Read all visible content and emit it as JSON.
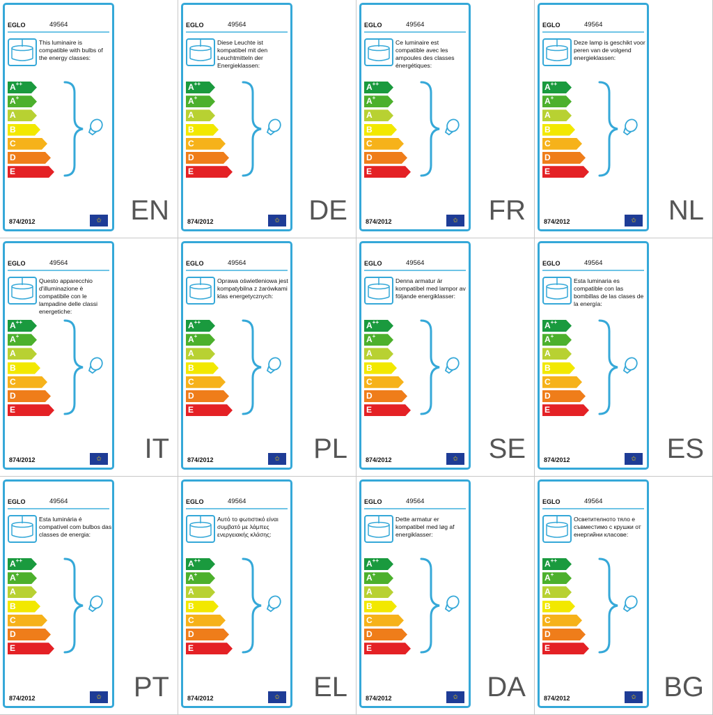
{
  "brand": "EGLO",
  "model": "49564",
  "regulation": "874/2012",
  "eu_flag_icon": "eu-flag-icon",
  "energy_classes": [
    {
      "base": "A",
      "sup": "++",
      "color": "#1a9a3e"
    },
    {
      "base": "A",
      "sup": "+",
      "color": "#4cb02c"
    },
    {
      "base": "A",
      "sup": "",
      "color": "#b8d132"
    },
    {
      "base": "B",
      "sup": "",
      "color": "#f2e800"
    },
    {
      "base": "C",
      "sup": "",
      "color": "#f6b21a"
    },
    {
      "base": "D",
      "sup": "",
      "color": "#ef7d1a"
    },
    {
      "base": "E",
      "sup": "",
      "color": "#e42125"
    }
  ],
  "accent_color": "#35a8d8",
  "panels": [
    {
      "lang": "EN",
      "text": "This luminaire is compatible with bulbs of the energy classes:"
    },
    {
      "lang": "DE",
      "text": "Diese Leuchte ist kompatibel mit den Leuchtmitteln der Energieklassen:"
    },
    {
      "lang": "FR",
      "text": "Ce luminaire est compatible avec les ampoules des classes énergétiques:"
    },
    {
      "lang": "NL",
      "text": "Deze lamp is geschikt voor peren van de volgend energieklassen:"
    },
    {
      "lang": "IT",
      "text": "Questo apparecchio d'illuminazione è compatibile con le lampadine delle classi energetiche:"
    },
    {
      "lang": "PL",
      "text": "Oprawa oświetleniowa jest kompatybilna z żarówkami klas energetycznych:"
    },
    {
      "lang": "SE",
      "text": "Denna armatur är kompatibel med lampor av följande energiklasser:"
    },
    {
      "lang": "ES",
      "text": "Esta luminaria es compatible con las bombillas de las clases de la energía:"
    },
    {
      "lang": "PT",
      "text": "Esta luminária é compatível com bulbos das classes de energia:"
    },
    {
      "lang": "EL",
      "text": "Αυτό το φωτιστικό είναι συμβατό με λάμπες ενεργειακής κλάσης:"
    },
    {
      "lang": "DA",
      "text": "Dette armatur er kompatibel med løg af energiklasser:"
    },
    {
      "lang": "BG",
      "text": "Осветителното тяло е съвместимо с крушки от енергийни класове:"
    }
  ]
}
